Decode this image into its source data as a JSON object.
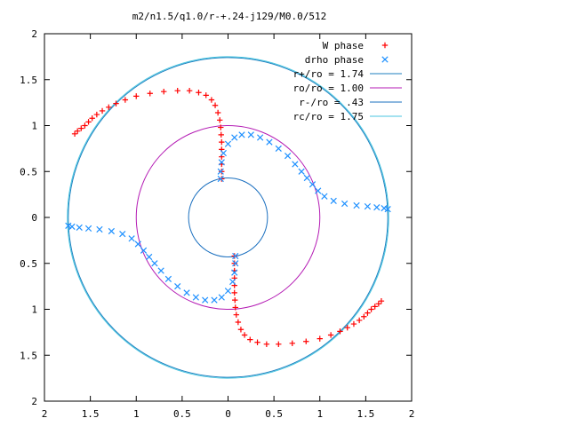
{
  "chart_data": {
    "type": "scatter",
    "title": "m2/n1.5/q1.0/r-+.24-j129/M0.0/512",
    "xlabel": "",
    "ylabel": "",
    "xlim": [
      -2,
      2
    ],
    "ylim": [
      -2,
      2
    ],
    "grid": false,
    "legend_placement": "top-right",
    "x_ticks": [
      {
        "value": -2,
        "label": "2"
      },
      {
        "value": -1.5,
        "label": "1.5"
      },
      {
        "value": -1,
        "label": "1"
      },
      {
        "value": -0.5,
        "label": "0.5"
      },
      {
        "value": 0,
        "label": "0"
      },
      {
        "value": 0.5,
        "label": "0.5"
      },
      {
        "value": 1,
        "label": "1"
      },
      {
        "value": 1.5,
        "label": "1.5"
      },
      {
        "value": 2,
        "label": "2"
      }
    ],
    "y_ticks": [
      {
        "value": 2,
        "label": "2"
      },
      {
        "value": 1.5,
        "label": "1.5"
      },
      {
        "value": 1,
        "label": "1"
      },
      {
        "value": 0.5,
        "label": "0.5"
      },
      {
        "value": 0,
        "label": "0"
      },
      {
        "value": -0.5,
        "label": "0.5"
      },
      {
        "value": -1,
        "label": "1"
      },
      {
        "value": -1.5,
        "label": "1.5"
      },
      {
        "value": -2,
        "label": "2"
      }
    ],
    "circles": [
      {
        "name": "r+/ro = 1.74",
        "radius": 1.74,
        "color": "#1e7fbf"
      },
      {
        "name": "ro/ro = 1.00",
        "radius": 1.0,
        "color": "#b41bb4"
      },
      {
        "name": "r-/ro = .43",
        "radius": 0.43,
        "color": "#1a6fbf"
      },
      {
        "name": "rc/ro = 1.75",
        "radius": 1.75,
        "color": "#48c6e0"
      }
    ],
    "series": [
      {
        "name": "W phase",
        "marker": "+",
        "color": "#ff0000",
        "x": [
          -0.07,
          -0.07,
          -0.07,
          -0.07,
          -0.07,
          -0.07,
          -0.075,
          -0.08,
          -0.09,
          -0.11,
          -0.14,
          -0.18,
          -0.24,
          -0.32,
          -0.42,
          -0.55,
          -0.7,
          -0.85,
          -1.0,
          -1.12,
          -1.22,
          -1.3,
          -1.37,
          -1.43,
          -1.48,
          -1.52,
          -1.56,
          -1.6,
          -1.64,
          -1.67,
          0.07,
          0.07,
          0.07,
          0.07,
          0.07,
          0.07,
          0.075,
          0.08,
          0.09,
          0.11,
          0.14,
          0.18,
          0.24,
          0.32,
          0.42,
          0.55,
          0.7,
          0.85,
          1.0,
          1.12,
          1.22,
          1.3,
          1.37,
          1.43,
          1.48,
          1.52,
          1.56,
          1.6,
          1.64,
          1.67
        ],
        "y": [
          0.42,
          0.5,
          0.58,
          0.66,
          0.74,
          0.82,
          0.9,
          0.98,
          1.06,
          1.14,
          1.22,
          1.28,
          1.33,
          1.36,
          1.38,
          1.38,
          1.37,
          1.35,
          1.32,
          1.28,
          1.24,
          1.2,
          1.16,
          1.12,
          1.08,
          1.04,
          1.0,
          0.97,
          0.94,
          0.91,
          -0.42,
          -0.5,
          -0.58,
          -0.66,
          -0.74,
          -0.82,
          -0.9,
          -0.98,
          -1.06,
          -1.14,
          -1.22,
          -1.28,
          -1.33,
          -1.36,
          -1.38,
          -1.38,
          -1.37,
          -1.35,
          -1.32,
          -1.28,
          -1.24,
          -1.2,
          -1.16,
          -1.12,
          -1.08,
          -1.04,
          -1.0,
          -0.97,
          -0.94,
          -0.91
        ]
      },
      {
        "name": "drho phase",
        "marker": "x",
        "color": "#1e90ff",
        "x": [
          -0.08,
          -0.08,
          -0.07,
          -0.05,
          0.0,
          0.07,
          0.15,
          0.25,
          0.35,
          0.45,
          0.55,
          0.65,
          0.73,
          0.8,
          0.86,
          0.92,
          0.98,
          1.05,
          1.15,
          1.27,
          1.4,
          1.52,
          1.62,
          1.7,
          1.74,
          0.08,
          0.08,
          0.07,
          0.05,
          0.0,
          -0.07,
          -0.15,
          -0.25,
          -0.35,
          -0.45,
          -0.55,
          -0.65,
          -0.73,
          -0.8,
          -0.86,
          -0.92,
          -0.98,
          -1.05,
          -1.15,
          -1.27,
          -1.4,
          -1.52,
          -1.62,
          -1.7,
          -1.74
        ],
        "y": [
          0.42,
          0.5,
          0.6,
          0.7,
          0.8,
          0.87,
          0.9,
          0.9,
          0.87,
          0.82,
          0.75,
          0.67,
          0.58,
          0.5,
          0.43,
          0.36,
          0.29,
          0.23,
          0.18,
          0.15,
          0.13,
          0.12,
          0.11,
          0.1,
          0.09,
          -0.42,
          -0.5,
          -0.6,
          -0.7,
          -0.8,
          -0.87,
          -0.9,
          -0.9,
          -0.87,
          -0.82,
          -0.75,
          -0.67,
          -0.58,
          -0.5,
          -0.43,
          -0.36,
          -0.29,
          -0.23,
          -0.18,
          -0.15,
          -0.13,
          -0.12,
          -0.11,
          -0.1,
          -0.09
        ]
      }
    ]
  }
}
